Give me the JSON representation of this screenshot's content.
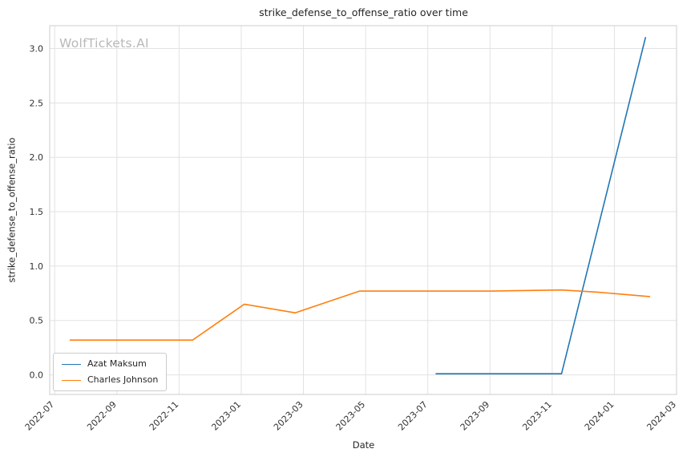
{
  "watermark": "WolfTickets.AI",
  "chart_data": {
    "type": "line",
    "title": "strike_defense_to_offense_ratio over time",
    "xlabel": "Date",
    "ylabel": "strike_defense_to_offense_ratio",
    "grid": true,
    "legend_position": "lower-left",
    "x_unit": "months_since_2022-07",
    "xlim": [
      -0.16,
      20.0
    ],
    "ylim": [
      -0.18,
      3.21
    ],
    "xticks": [
      "2022-07",
      "2022-09",
      "2022-11",
      "2023-01",
      "2023-03",
      "2023-05",
      "2023-07",
      "2023-09",
      "2023-11",
      "2024-01",
      "2024-03"
    ],
    "yticks": [
      0.0,
      0.5,
      1.0,
      1.5,
      2.0,
      2.5,
      3.0
    ],
    "colors": {
      "grid": "#e2e2e2",
      "spine": "#cdcdcd",
      "tick_label": "#333333",
      "title": "#262626",
      "watermark": "#b9b9b9",
      "background": "#ffffff"
    },
    "series": [
      {
        "name": "Azat Maksum",
        "color": "#1f77b4",
        "points": [
          [
            "2023-07-09",
            0.01
          ],
          [
            "2023-09-01",
            0.01
          ],
          [
            "2023-11-10",
            0.01
          ],
          [
            "2024-02-01",
            3.1
          ]
        ]
      },
      {
        "name": "Charles Johnson",
        "color": "#ff7f0e",
        "points": [
          [
            "2022-07-16",
            0.32
          ],
          [
            "2022-09-01",
            0.32
          ],
          [
            "2022-11-14",
            0.32
          ],
          [
            "2023-01-04",
            0.65
          ],
          [
            "2023-02-23",
            0.57
          ],
          [
            "2023-04-25",
            0.77
          ],
          [
            "2023-07-01",
            0.77
          ],
          [
            "2023-09-01",
            0.77
          ],
          [
            "2023-11-10",
            0.78
          ],
          [
            "2023-12-15",
            0.76
          ],
          [
            "2024-02-05",
            0.72
          ]
        ]
      }
    ]
  }
}
